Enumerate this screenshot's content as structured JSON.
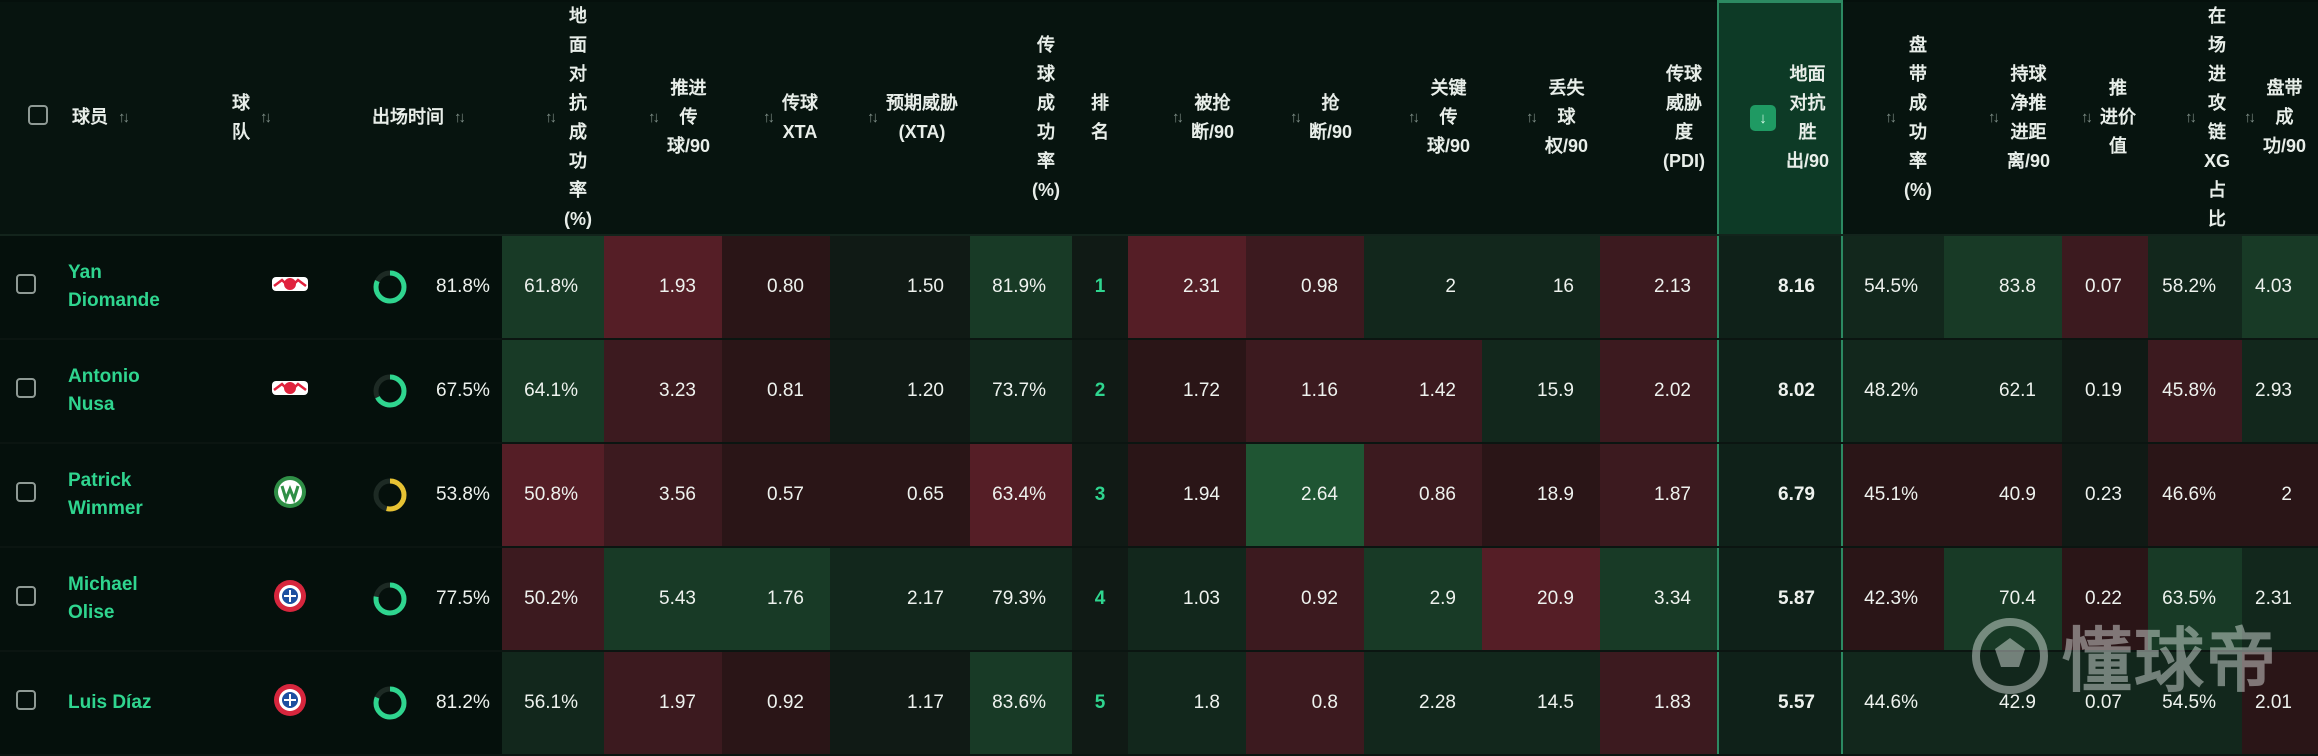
{
  "headers": [
    {
      "key": "select",
      "label": ""
    },
    {
      "key": "player",
      "label": "球员"
    },
    {
      "key": "team",
      "label": "球\n队"
    },
    {
      "key": "minutes",
      "label": "出场时间"
    },
    {
      "key": "ground_duel_pct",
      "label": "地\n面\n对\n抗\n成\n功\n率\n(%)"
    },
    {
      "key": "prog_pass",
      "label": "推进\n传\n球/90"
    },
    {
      "key": "pass_xta",
      "label": "传球\nXTA"
    },
    {
      "key": "exp_threat",
      "label": "预期威胁\n(XTA)"
    },
    {
      "key": "pass_pct",
      "label": "传\n球\n成\n功\n率\n(%)"
    },
    {
      "key": "rank",
      "label": "排\n名"
    },
    {
      "key": "dispossessed",
      "label": "被抢\n断/90"
    },
    {
      "key": "tackles",
      "label": "抢\n断/90"
    },
    {
      "key": "key_pass",
      "label": "关键\n传\n球/90"
    },
    {
      "key": "possession_lost",
      "label": "丢失\n球\n权/90"
    },
    {
      "key": "pdi",
      "label": "传球\n威胁\n度\n(PDI)"
    },
    {
      "key": "ground_duel_won",
      "label": "地面\n对抗\n胜\n出/90"
    },
    {
      "key": "dribble_pct",
      "label": "盘\n带\n成\n功\n率\n(%)"
    },
    {
      "key": "carry_dist",
      "label": "持球\n净推\n进距\n离/90"
    },
    {
      "key": "prog_value",
      "label": "推\n进价\n值"
    },
    {
      "key": "xg_chain",
      "label": "在\n场\n进\n攻\n链\nXG\n占\n比"
    },
    {
      "key": "dribbles",
      "label": "盘带\n成\n功/90"
    }
  ],
  "rows": [
    {
      "name": "Yan\nDiomande",
      "team_icon": "rb-leipzig-crest-icon",
      "minutes_pct": "81.8%",
      "minutes_frac": 0.818,
      "ring_color": "#2fd58f",
      "cells": [
        "61.8%",
        "1.93",
        "0.80",
        "1.50",
        "81.9%",
        "1",
        "2.31",
        "0.98",
        "2",
        "16",
        "2.13",
        "8.16",
        "54.5%",
        "83.8",
        "0.07",
        "58.2%",
        "4.03"
      ]
    },
    {
      "name": "Antonio\nNusa",
      "team_icon": "rb-leipzig-crest-icon",
      "minutes_pct": "67.5%",
      "minutes_frac": 0.675,
      "ring_color": "#2fd58f",
      "cells": [
        "64.1%",
        "3.23",
        "0.81",
        "1.20",
        "73.7%",
        "2",
        "1.72",
        "1.16",
        "1.42",
        "15.9",
        "2.02",
        "8.02",
        "48.2%",
        "62.1",
        "0.19",
        "45.8%",
        "2.93"
      ]
    },
    {
      "name": "Patrick\nWimmer",
      "team_icon": "wolfsburg-crest-icon",
      "minutes_pct": "53.8%",
      "minutes_frac": 0.538,
      "ring_color": "#e7c233",
      "cells": [
        "50.8%",
        "3.56",
        "0.57",
        "0.65",
        "63.4%",
        "3",
        "1.94",
        "2.64",
        "0.86",
        "18.9",
        "1.87",
        "6.79",
        "45.1%",
        "40.9",
        "0.23",
        "46.6%",
        "2"
      ]
    },
    {
      "name": "Michael\nOlise",
      "team_icon": "bayern-crest-icon",
      "minutes_pct": "77.5%",
      "minutes_frac": 0.775,
      "ring_color": "#2fd58f",
      "cells": [
        "50.2%",
        "5.43",
        "1.76",
        "2.17",
        "79.3%",
        "4",
        "1.03",
        "0.92",
        "2.9",
        "20.9",
        "3.34",
        "5.87",
        "42.3%",
        "70.4",
        "0.22",
        "63.5%",
        "2.31"
      ]
    },
    {
      "name": "Luis Díaz",
      "team_icon": "bayern-crest-icon",
      "minutes_pct": "81.2%",
      "minutes_frac": 0.812,
      "ring_color": "#2fd58f",
      "cells": [
        "56.1%",
        "1.97",
        "0.92",
        "1.17",
        "83.6%",
        "5",
        "1.8",
        "0.8",
        "2.28",
        "14.5",
        "1.83",
        "5.57",
        "44.6%",
        "42.9",
        "0.07",
        "54.5%",
        "2.01"
      ]
    }
  ],
  "watermark": "懂球帝",
  "sorted_column": "ground_duel_won",
  "sort_icon": "arrow-down-icon"
}
